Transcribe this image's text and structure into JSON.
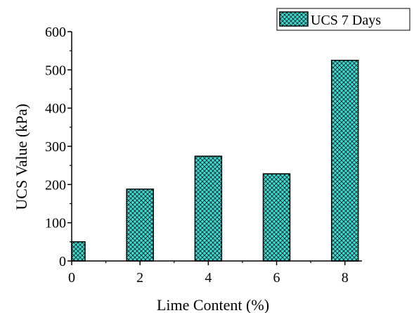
{
  "chart_data": {
    "type": "bar",
    "x": [
      0,
      2,
      4,
      6,
      8
    ],
    "values": [
      50,
      188,
      274,
      228,
      525
    ],
    "series": [
      {
        "name": "UCS 7 Days",
        "values": [
          50,
          188,
          274,
          228,
          525
        ]
      }
    ],
    "xlabel": "Lime Content (%)",
    "ylabel": "UCS Value (kPa)",
    "xlim": [
      0,
      8.5
    ],
    "ylim": [
      0,
      600
    ],
    "xticks": [
      0,
      2,
      4,
      6,
      8
    ],
    "yticks": [
      0,
      100,
      200,
      300,
      400,
      500,
      600
    ],
    "legend_position": "top-right",
    "grid": false,
    "bar_color": "#33e0d8",
    "hatch": "crosshatch"
  }
}
